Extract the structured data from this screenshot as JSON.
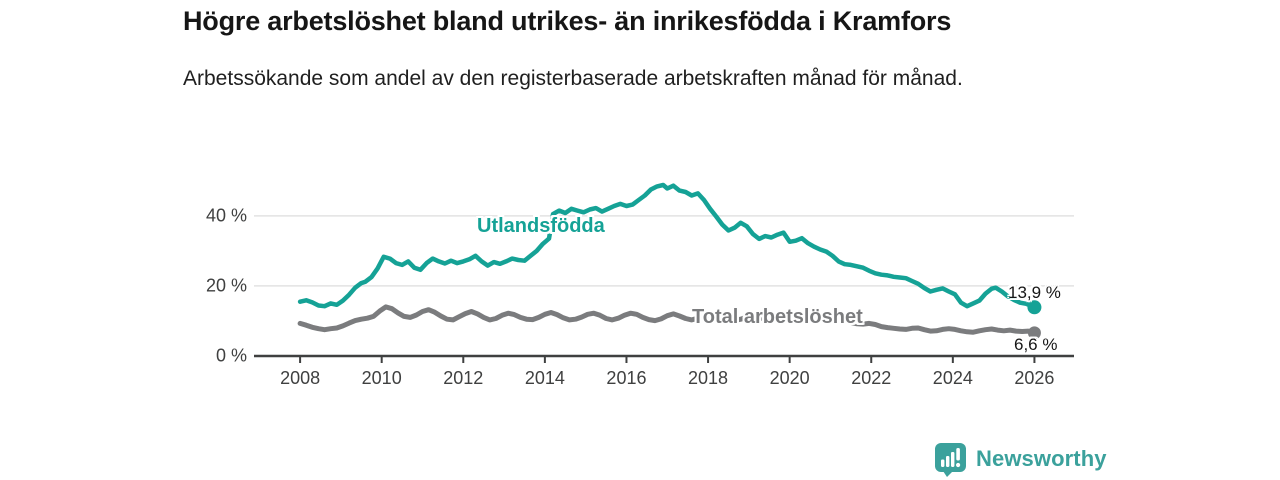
{
  "header": {
    "title": "Högre arbetslöshet bland utrikes- än inrikesfödda i Kramfors",
    "subtitle": "Arbetssökande som andel av den registerbaserade arbetskraften månad för månad."
  },
  "footer": {
    "brand": "Newsworthy"
  },
  "colors": {
    "series_foreign_born": "#15a296",
    "series_total": "#7b7c7e",
    "axis": "#3f4040",
    "gridline": "#e2e2e2",
    "tick_text": "#3f4040",
    "value_label_text": "#161616",
    "brand_teal": "#3ba19c",
    "background": "#ffffff"
  },
  "chart_data": {
    "type": "line",
    "title": "Högre arbetslöshet bland utrikes- än inrikesfödda i Kramfors",
    "subtitle": "Arbetssökande som andel av den registerbaserade arbetskraften månad för månad.",
    "xlabel": "",
    "ylabel": "",
    "xlim": [
      2006.87,
      2026.97
    ],
    "ylim": [
      0,
      54.5
    ],
    "grid": "horizontal-only",
    "legend": "inline-series-labels",
    "x_ticks": [
      {
        "value": 2008,
        "label": "2008"
      },
      {
        "value": 2010,
        "label": "2010"
      },
      {
        "value": 2012,
        "label": "2012"
      },
      {
        "value": 2014,
        "label": "2014"
      },
      {
        "value": 2016,
        "label": "2016"
      },
      {
        "value": 2018,
        "label": "2018"
      },
      {
        "value": 2020,
        "label": "2020"
      },
      {
        "value": 2022,
        "label": "2022"
      },
      {
        "value": 2024,
        "label": "2024"
      },
      {
        "value": 2026,
        "label": "2026"
      }
    ],
    "y_ticks": [
      {
        "value": 0,
        "label": "0 %"
      },
      {
        "value": 20,
        "label": "20 %"
      },
      {
        "value": 40,
        "label": "40 %"
      }
    ],
    "series": [
      {
        "name": "Utlandsfödda",
        "color": "#15a296",
        "line_width": 4.5,
        "end_dot_radius": 7,
        "end_label": "13,9 %",
        "end_value": 13.9,
        "points": [
          [
            2008.0,
            15.5
          ],
          [
            2008.15,
            15.9
          ],
          [
            2008.3,
            15.3
          ],
          [
            2008.45,
            14.4
          ],
          [
            2008.6,
            14.2
          ],
          [
            2008.75,
            15.0
          ],
          [
            2008.9,
            14.6
          ],
          [
            2009.05,
            15.8
          ],
          [
            2009.2,
            17.5
          ],
          [
            2009.35,
            19.5
          ],
          [
            2009.5,
            20.8
          ],
          [
            2009.6,
            21.2
          ],
          [
            2009.75,
            22.5
          ],
          [
            2009.9,
            25.0
          ],
          [
            2010.05,
            28.3
          ],
          [
            2010.2,
            27.8
          ],
          [
            2010.35,
            26.5
          ],
          [
            2010.5,
            26.0
          ],
          [
            2010.65,
            27.0
          ],
          [
            2010.8,
            25.2
          ],
          [
            2010.95,
            24.6
          ],
          [
            2011.1,
            26.5
          ],
          [
            2011.25,
            27.8
          ],
          [
            2011.4,
            27.0
          ],
          [
            2011.55,
            26.4
          ],
          [
            2011.7,
            27.2
          ],
          [
            2011.85,
            26.5
          ],
          [
            2012.0,
            27.0
          ],
          [
            2012.15,
            27.6
          ],
          [
            2012.3,
            28.6
          ],
          [
            2012.45,
            27.0
          ],
          [
            2012.6,
            25.8
          ],
          [
            2012.75,
            26.8
          ],
          [
            2012.9,
            26.3
          ],
          [
            2013.05,
            27.0
          ],
          [
            2013.2,
            27.8
          ],
          [
            2013.35,
            27.4
          ],
          [
            2013.5,
            27.2
          ],
          [
            2013.65,
            28.6
          ],
          [
            2013.8,
            30.0
          ],
          [
            2013.95,
            32.0
          ],
          [
            2014.1,
            33.5
          ],
          [
            2014.2,
            40.5
          ],
          [
            2014.35,
            41.5
          ],
          [
            2014.5,
            40.8
          ],
          [
            2014.65,
            42.0
          ],
          [
            2014.8,
            41.5
          ],
          [
            2014.95,
            41.0
          ],
          [
            2015.1,
            41.8
          ],
          [
            2015.25,
            42.2
          ],
          [
            2015.4,
            41.2
          ],
          [
            2015.55,
            42.0
          ],
          [
            2015.7,
            42.8
          ],
          [
            2015.85,
            43.4
          ],
          [
            2016.0,
            42.8
          ],
          [
            2016.15,
            43.2
          ],
          [
            2016.3,
            44.5
          ],
          [
            2016.45,
            45.8
          ],
          [
            2016.6,
            47.5
          ],
          [
            2016.75,
            48.4
          ],
          [
            2016.9,
            48.8
          ],
          [
            2017.0,
            47.8
          ],
          [
            2017.15,
            48.6
          ],
          [
            2017.3,
            47.2
          ],
          [
            2017.45,
            46.8
          ],
          [
            2017.6,
            45.8
          ],
          [
            2017.75,
            46.4
          ],
          [
            2017.9,
            44.5
          ],
          [
            2018.05,
            42.0
          ],
          [
            2018.2,
            39.8
          ],
          [
            2018.35,
            37.5
          ],
          [
            2018.5,
            35.8
          ],
          [
            2018.65,
            36.6
          ],
          [
            2018.8,
            38.0
          ],
          [
            2018.95,
            37.0
          ],
          [
            2019.1,
            34.8
          ],
          [
            2019.25,
            33.4
          ],
          [
            2019.4,
            34.2
          ],
          [
            2019.55,
            33.8
          ],
          [
            2019.7,
            34.6
          ],
          [
            2019.85,
            35.2
          ],
          [
            2020.0,
            32.6
          ],
          [
            2020.15,
            32.9
          ],
          [
            2020.3,
            33.6
          ],
          [
            2020.45,
            32.2
          ],
          [
            2020.6,
            31.2
          ],
          [
            2020.75,
            30.4
          ],
          [
            2020.9,
            29.8
          ],
          [
            2021.05,
            28.6
          ],
          [
            2021.2,
            27.0
          ],
          [
            2021.35,
            26.2
          ],
          [
            2021.5,
            26.0
          ],
          [
            2021.65,
            25.6
          ],
          [
            2021.8,
            25.2
          ],
          [
            2021.95,
            24.3
          ],
          [
            2022.1,
            23.6
          ],
          [
            2022.25,
            23.2
          ],
          [
            2022.4,
            23.0
          ],
          [
            2022.55,
            22.6
          ],
          [
            2022.7,
            22.4
          ],
          [
            2022.85,
            22.2
          ],
          [
            2023.0,
            21.4
          ],
          [
            2023.15,
            20.6
          ],
          [
            2023.3,
            19.4
          ],
          [
            2023.45,
            18.4
          ],
          [
            2023.6,
            18.9
          ],
          [
            2023.75,
            19.3
          ],
          [
            2023.9,
            18.4
          ],
          [
            2024.05,
            17.6
          ],
          [
            2024.2,
            15.2
          ],
          [
            2024.35,
            14.2
          ],
          [
            2024.5,
            15.0
          ],
          [
            2024.65,
            15.8
          ],
          [
            2024.8,
            17.8
          ],
          [
            2024.95,
            19.2
          ],
          [
            2025.05,
            19.5
          ],
          [
            2025.2,
            18.4
          ],
          [
            2025.35,
            17.0
          ],
          [
            2025.5,
            16.0
          ],
          [
            2025.65,
            15.2
          ],
          [
            2025.8,
            14.9
          ],
          [
            2025.9,
            14.4
          ],
          [
            2026.0,
            13.9
          ]
        ]
      },
      {
        "name": "Total arbetslöshet",
        "color": "#7b7c7e",
        "line_width": 5,
        "end_dot_radius": 6.5,
        "end_label": "6,6 %",
        "end_value": 6.6,
        "points": [
          [
            2008.0,
            9.3
          ],
          [
            2008.15,
            8.8
          ],
          [
            2008.3,
            8.2
          ],
          [
            2008.45,
            7.8
          ],
          [
            2008.6,
            7.5
          ],
          [
            2008.75,
            7.8
          ],
          [
            2008.9,
            8.0
          ],
          [
            2009.05,
            8.6
          ],
          [
            2009.2,
            9.4
          ],
          [
            2009.35,
            10.1
          ],
          [
            2009.5,
            10.5
          ],
          [
            2009.65,
            10.8
          ],
          [
            2009.8,
            11.3
          ],
          [
            2009.95,
            12.8
          ],
          [
            2010.1,
            14.0
          ],
          [
            2010.25,
            13.5
          ],
          [
            2010.4,
            12.3
          ],
          [
            2010.55,
            11.3
          ],
          [
            2010.7,
            11.0
          ],
          [
            2010.85,
            11.7
          ],
          [
            2011.0,
            12.7
          ],
          [
            2011.15,
            13.2
          ],
          [
            2011.3,
            12.5
          ],
          [
            2011.45,
            11.4
          ],
          [
            2011.6,
            10.5
          ],
          [
            2011.75,
            10.3
          ],
          [
            2011.9,
            11.2
          ],
          [
            2012.05,
            12.1
          ],
          [
            2012.2,
            12.7
          ],
          [
            2012.35,
            12.0
          ],
          [
            2012.5,
            11.0
          ],
          [
            2012.65,
            10.3
          ],
          [
            2012.8,
            10.7
          ],
          [
            2012.95,
            11.6
          ],
          [
            2013.1,
            12.2
          ],
          [
            2013.25,
            11.8
          ],
          [
            2013.4,
            11.0
          ],
          [
            2013.55,
            10.5
          ],
          [
            2013.7,
            10.4
          ],
          [
            2013.85,
            11.0
          ],
          [
            2014.0,
            11.9
          ],
          [
            2014.15,
            12.4
          ],
          [
            2014.3,
            11.8
          ],
          [
            2014.45,
            10.9
          ],
          [
            2014.6,
            10.3
          ],
          [
            2014.75,
            10.5
          ],
          [
            2014.9,
            11.1
          ],
          [
            2015.05,
            11.9
          ],
          [
            2015.2,
            12.2
          ],
          [
            2015.35,
            11.6
          ],
          [
            2015.5,
            10.7
          ],
          [
            2015.65,
            10.3
          ],
          [
            2015.8,
            10.8
          ],
          [
            2015.95,
            11.6
          ],
          [
            2016.1,
            12.2
          ],
          [
            2016.25,
            11.9
          ],
          [
            2016.4,
            11.0
          ],
          [
            2016.55,
            10.4
          ],
          [
            2016.7,
            10.1
          ],
          [
            2016.85,
            10.6
          ],
          [
            2017.0,
            11.5
          ],
          [
            2017.15,
            12.0
          ],
          [
            2017.3,
            11.4
          ],
          [
            2017.45,
            10.7
          ],
          [
            2017.6,
            10.3
          ],
          [
            2017.75,
            10.8
          ],
          [
            2017.9,
            11.3
          ],
          [
            2018.05,
            11.8
          ],
          [
            2018.2,
            11.5
          ],
          [
            2018.35,
            10.9
          ],
          [
            2018.5,
            10.4
          ],
          [
            2018.65,
            10.1
          ],
          [
            2018.8,
            10.5
          ],
          [
            2018.95,
            11.1
          ],
          [
            2019.1,
            11.5
          ],
          [
            2019.25,
            11.0
          ],
          [
            2019.4,
            10.5
          ],
          [
            2019.55,
            10.1
          ],
          [
            2019.7,
            10.0
          ],
          [
            2019.85,
            10.4
          ],
          [
            2020.0,
            11.0
          ],
          [
            2020.15,
            11.7
          ],
          [
            2020.3,
            12.0
          ],
          [
            2020.45,
            11.5
          ],
          [
            2020.6,
            11.0
          ],
          [
            2020.75,
            10.7
          ],
          [
            2020.9,
            10.9
          ],
          [
            2021.05,
            11.0
          ],
          [
            2021.2,
            10.6
          ],
          [
            2021.35,
            10.0
          ],
          [
            2021.5,
            9.6
          ],
          [
            2021.65,
            9.2
          ],
          [
            2021.8,
            9.1
          ],
          [
            2021.95,
            9.3
          ],
          [
            2022.1,
            9.0
          ],
          [
            2022.25,
            8.4
          ],
          [
            2022.4,
            8.1
          ],
          [
            2022.55,
            7.9
          ],
          [
            2022.7,
            7.7
          ],
          [
            2022.85,
            7.6
          ],
          [
            2023.0,
            7.9
          ],
          [
            2023.15,
            8.0
          ],
          [
            2023.3,
            7.5
          ],
          [
            2023.45,
            7.1
          ],
          [
            2023.6,
            7.2
          ],
          [
            2023.75,
            7.6
          ],
          [
            2023.9,
            7.8
          ],
          [
            2024.05,
            7.6
          ],
          [
            2024.2,
            7.2
          ],
          [
            2024.35,
            6.9
          ],
          [
            2024.5,
            6.8
          ],
          [
            2024.65,
            7.2
          ],
          [
            2024.8,
            7.5
          ],
          [
            2024.95,
            7.7
          ],
          [
            2025.1,
            7.4
          ],
          [
            2025.25,
            7.2
          ],
          [
            2025.4,
            7.4
          ],
          [
            2025.55,
            7.1
          ],
          [
            2025.7,
            7.0
          ],
          [
            2025.85,
            7.1
          ],
          [
            2026.0,
            6.6
          ]
        ]
      }
    ]
  }
}
